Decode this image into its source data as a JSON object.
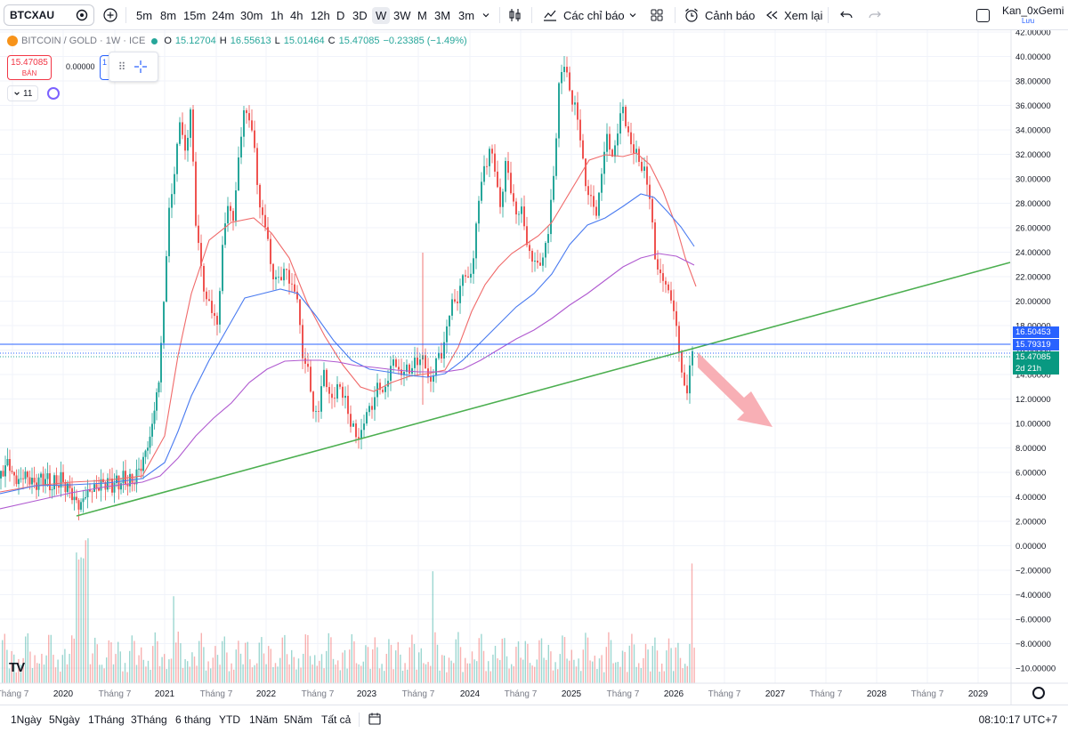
{
  "toolbar": {
    "symbol": "BTCXAU",
    "timeframes": [
      "5m",
      "8m",
      "15m",
      "24m",
      "30m",
      "1h",
      "4h",
      "12h",
      "D",
      "3D",
      "W",
      "3W",
      "M",
      "3M",
      "3m"
    ],
    "active_timeframe": "W",
    "indicators_label": "Các chỉ báo",
    "alerts_label": "Cảnh báo",
    "replay_label": "Xem lại",
    "layout_name": "Kan_0xGemi",
    "save_label": "Lưu"
  },
  "legend": {
    "title": "BITCOIN / GOLD · 1W · ICE",
    "o_key": "O",
    "o_val": "15.12704",
    "h_key": "H",
    "h_val": "16.55613",
    "l_key": "L",
    "l_val": "15.01464",
    "c_key": "C",
    "c_val": "15.47085",
    "change": "−0.23385 (−1.49%)"
  },
  "trade": {
    "sell_price": "15.47085",
    "sell_label": "BÁN",
    "spread": "0.00000",
    "buy_edge": "1"
  },
  "indicators_row": {
    "count": "11"
  },
  "price_axis": {
    "ticks": [
      "42.00000",
      "40.00000",
      "38.00000",
      "36.00000",
      "34.00000",
      "32.00000",
      "30.00000",
      "28.00000",
      "26.00000",
      "24.00000",
      "22.00000",
      "20.00000",
      "18.00000",
      "16.00000",
      "14.00000",
      "12.00000",
      "10.00000",
      "8.00000",
      "6.00000",
      "4.00000",
      "2.00000",
      "0.00000",
      "−2.00000",
      "−4.00000",
      "−6.00000",
      "−8.00000",
      "−10.00000"
    ],
    "tag_high": "16.50453",
    "tag_mid": "15.79319",
    "tag_last": "15.47085",
    "tag_countdown": "2d 21h"
  },
  "time_axis": {
    "labels": [
      "Tháng 7",
      "2020",
      "Tháng 7",
      "2021",
      "Tháng 7",
      "2022",
      "Tháng 7",
      "2023",
      "Tháng 7",
      "2024",
      "Tháng 7",
      "2025",
      "Tháng 7",
      "2026",
      "Tháng 7",
      "2027",
      "Tháng 7",
      "2028",
      "Tháng 7",
      "2029"
    ]
  },
  "bottombar": {
    "ranges": [
      "1Ngày",
      "5Ngày",
      "1Tháng",
      "3Tháng",
      "6 tháng",
      "YTD",
      "1Năm",
      "5Năm",
      "Tất cả"
    ],
    "clock": "08:10:17 UTC+7"
  },
  "colors": {
    "up": "#26a69a",
    "down": "#ef5350",
    "ma_red": "#f06a6a",
    "ma_blue": "#4a7bf0",
    "ma_purple": "#b05ad0",
    "trendline": "#4caf50",
    "arrow": "#f7a1a8",
    "blue_line": "#2962ff"
  },
  "icons": {
    "tradingview_logo": "TV",
    "add_symbol": "plus-circle-icon",
    "chart_type": "candles-icon",
    "templates": "grid-icon",
    "alert": "alarm-icon",
    "replay": "rewind-icon",
    "undo": "undo-icon",
    "redo": "redo-icon",
    "settings": "gear-icon",
    "date_range": "calendar-icon"
  }
}
